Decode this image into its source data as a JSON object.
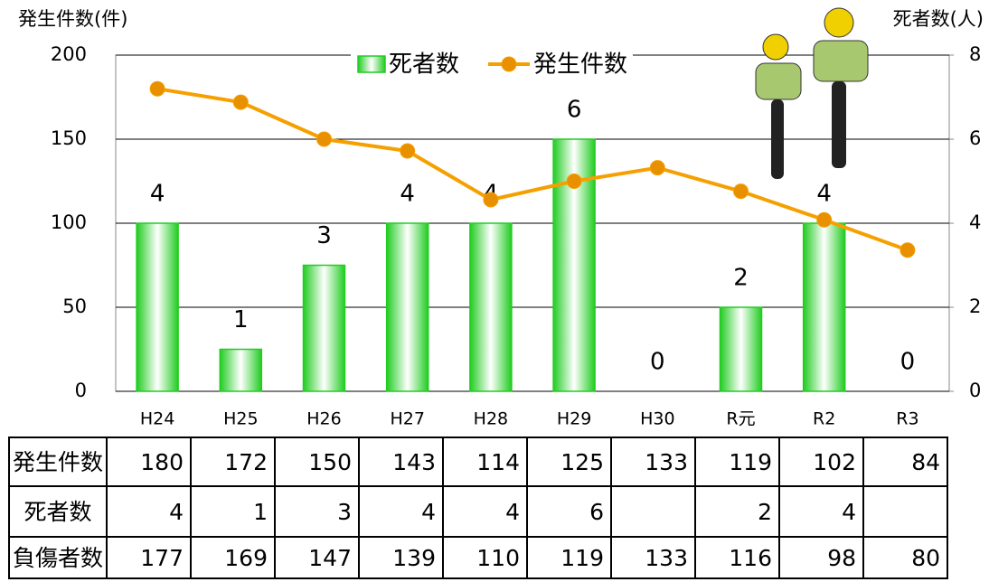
{
  "chart_data": {
    "type": "bar_line",
    "y_label": "発生件数(件)",
    "y2_label": "死者数(人)",
    "categories": [
      "H24",
      "H25",
      "H26",
      "H27",
      "H28",
      "H29",
      "H30",
      "R元",
      "R2",
      "R3"
    ],
    "series": [
      {
        "name": "死者数",
        "type": "bar",
        "axis": "y2",
        "color": "#22cc22",
        "values": [
          4,
          1,
          3,
          4,
          4,
          6,
          0,
          2,
          4,
          0
        ]
      },
      {
        "name": "発生件数",
        "type": "line",
        "axis": "y",
        "color": "#f5a000",
        "values": [
          180,
          172,
          150,
          143,
          114,
          125,
          133,
          119,
          102,
          84
        ]
      }
    ],
    "ylim": [
      0,
      200
    ],
    "yticks": [
      0,
      50,
      100,
      150,
      200
    ],
    "y2lim": [
      0,
      8
    ],
    "y2ticks": [
      0,
      2,
      4,
      6,
      8
    ],
    "grid": true,
    "legend": "top"
  },
  "table": {
    "rows": [
      {
        "name": "発生件数",
        "values": [
          180,
          172,
          150,
          143,
          114,
          125,
          133,
          119,
          102,
          84
        ]
      },
      {
        "name": "死者数",
        "values": [
          4,
          1,
          3,
          4,
          4,
          6,
          null,
          2,
          4,
          null
        ]
      },
      {
        "name": "負傷者数",
        "values": [
          177,
          169,
          147,
          139,
          110,
          119,
          133,
          116,
          98,
          80
        ]
      }
    ]
  }
}
